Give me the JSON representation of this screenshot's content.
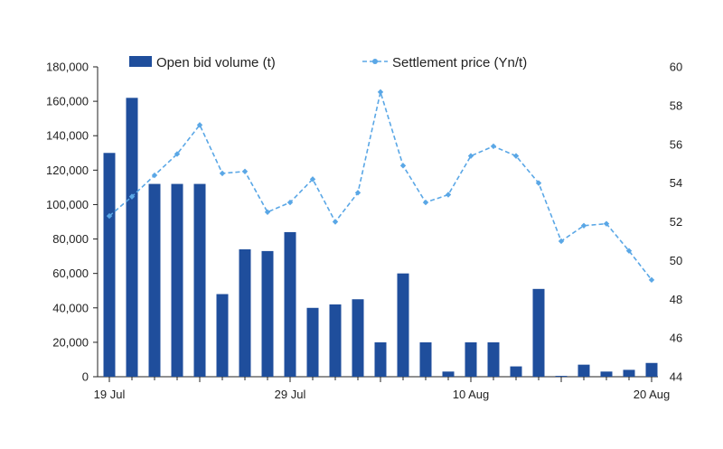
{
  "chart_data": {
    "type": "bar",
    "title": "",
    "x_tick_labels": [
      "19 Jul",
      "29 Jul",
      "10 Aug",
      "20 Aug"
    ],
    "left_axis": {
      "ylim": [
        0,
        180000
      ],
      "ticks": [
        0,
        20000,
        40000,
        60000,
        80000,
        100000,
        120000,
        140000,
        160000,
        180000
      ],
      "tick_labels": [
        "0",
        "20,000",
        "40,000",
        "60,000",
        "80,000",
        "100,000",
        "120,000",
        "140,000",
        "160,000",
        "180,000"
      ]
    },
    "right_axis": {
      "ylim": [
        44,
        60
      ],
      "ticks": [
        44,
        46,
        48,
        50,
        52,
        54,
        56,
        58,
        60
      ],
      "tick_labels": [
        "44",
        "46",
        "48",
        "50",
        "52",
        "54",
        "56",
        "58",
        "60"
      ]
    },
    "grid": false,
    "legend_position": "top",
    "series": [
      {
        "name": "Open bid volume (t)",
        "type": "bar",
        "axis": "left",
        "color": "#1f4e9c",
        "values": [
          130000,
          162000,
          112000,
          112000,
          112000,
          48000,
          74000,
          73000,
          84000,
          40000,
          42000,
          45000,
          20000,
          60000,
          20000,
          3000,
          20000,
          20000,
          6000,
          51000,
          500,
          7000,
          3000,
          4000,
          8000
        ]
      },
      {
        "name": "Settlement price (Yn/t)",
        "type": "line",
        "axis": "right",
        "color": "#5aa7e6",
        "values": [
          52.3,
          53.3,
          54.4,
          55.5,
          57.0,
          54.5,
          54.6,
          52.5,
          53.0,
          54.2,
          52.0,
          53.5,
          58.7,
          54.9,
          53.0,
          53.4,
          55.4,
          55.9,
          55.4,
          54.0,
          51.0,
          51.8,
          51.9,
          50.5,
          49.0
        ]
      }
    ]
  }
}
